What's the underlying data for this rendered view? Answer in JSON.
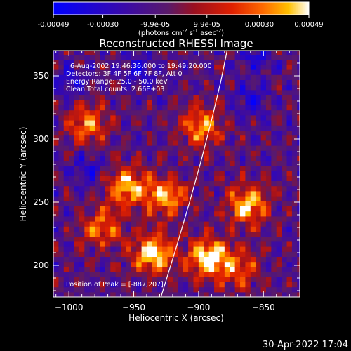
{
  "colorbar": {
    "tick_labels": [
      "-0.00049",
      "-0.00030",
      "-9.9e-05",
      "9.9e-05",
      "0.00030",
      "0.00049"
    ],
    "tick_values": [
      -0.00049,
      -0.0003,
      -9.9e-05,
      9.9e-05,
      0.0003,
      0.00049
    ],
    "range": [
      -0.00049,
      0.00049
    ],
    "units_base": "(photons cm",
    "units_exp1": "-2",
    "units_mid": " s",
    "units_exp2": "-1",
    "units_end": " asec",
    "units_exp3": "-2",
    "units_close": ")"
  },
  "chart_data": {
    "type": "heatmap",
    "title": "Reconstructed RHESSI Image",
    "xlabel": "Heliocentric X (arcsec)",
    "ylabel": "Heliocentric Y (arcsec)",
    "xlim": [
      -1012,
      -822
    ],
    "ylim": [
      175,
      370
    ],
    "x_ticks": [
      -1000,
      -950,
      -900,
      -850
    ],
    "x_tick_labels": [
      "−1000",
      "−950",
      "−900",
      "−850"
    ],
    "y_ticks": [
      200,
      250,
      300,
      350
    ],
    "y_tick_labels": [
      "200",
      "250",
      "300",
      "350"
    ],
    "colormap": "blue-purple-red-yellow-white",
    "hot_spots": [
      {
        "x": -935,
        "y": 210,
        "intensity": 1.0
      },
      {
        "x": -893,
        "y": 206,
        "intensity": 1.0
      },
      {
        "x": -862,
        "y": 248,
        "intensity": 0.9
      },
      {
        "x": -955,
        "y": 262,
        "intensity": 0.85
      },
      {
        "x": -925,
        "y": 255,
        "intensity": 0.8
      },
      {
        "x": -898,
        "y": 310,
        "intensity": 0.75
      },
      {
        "x": -985,
        "y": 312,
        "intensity": 0.7
      },
      {
        "x": -975,
        "y": 230,
        "intensity": 0.65
      },
      {
        "x": -870,
        "y": 198,
        "intensity": 0.6
      }
    ],
    "cold_spots": [
      {
        "x": -860,
        "y": 330
      },
      {
        "x": -855,
        "y": 365
      },
      {
        "x": -945,
        "y": 355
      },
      {
        "x": -1000,
        "y": 345
      },
      {
        "x": -985,
        "y": 278
      }
    ],
    "limb_curve": [
      {
        "x": -929,
        "y": 175
      },
      {
        "x": -917,
        "y": 215
      },
      {
        "x": -907,
        "y": 250
      },
      {
        "x": -898,
        "y": 283
      },
      {
        "x": -890,
        "y": 315
      },
      {
        "x": -883,
        "y": 345
      },
      {
        "x": -878,
        "y": 370
      }
    ],
    "annotations": [
      "6-Aug-2002 19:46:36.000 to 19:49:20.000",
      "Detectors: 3F 4F 5F 6F 7F 8F, Att 0",
      "Energy Range: 25.0 - 50.0 keV",
      "Clean     Total counts: 2.66E+03",
      "Position of Peak = [-887,207]"
    ]
  },
  "footer": {
    "timestamp": "30-Apr-2022 17:04"
  }
}
